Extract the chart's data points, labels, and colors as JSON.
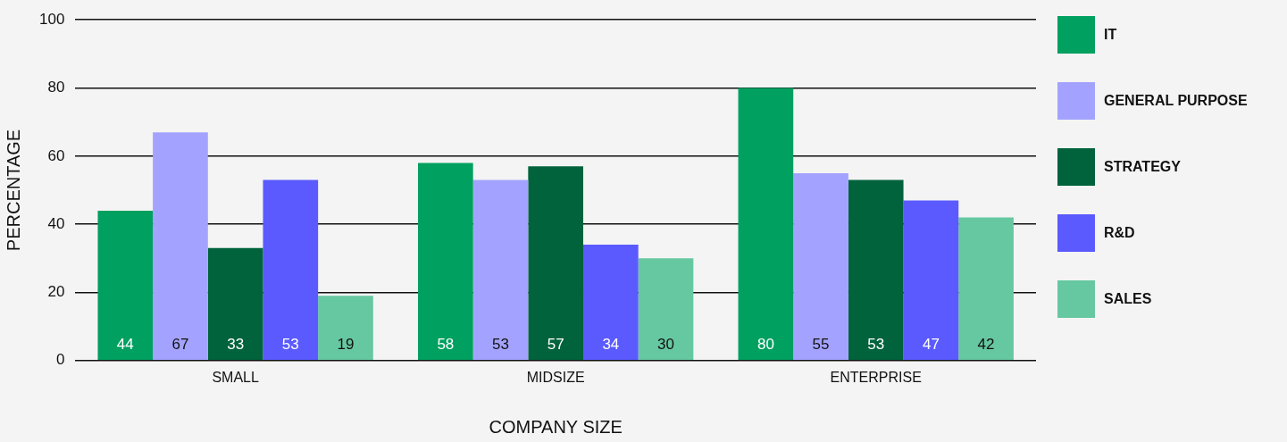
{
  "chart_data": {
    "type": "bar",
    "xlabel": "COMPANY SIZE",
    "ylabel": "PERCENTAGE",
    "categories": [
      "SMALL",
      "MIDSIZE",
      "ENTERPRISE"
    ],
    "series": [
      {
        "name": "IT",
        "color": "#00a060",
        "values": [
          44,
          58,
          80
        ]
      },
      {
        "name": "GENERAL PURPOSE",
        "color": "#a3a3ff",
        "values": [
          67,
          53,
          55
        ]
      },
      {
        "name": "STRATEGY",
        "color": "#00633c",
        "values": [
          33,
          57,
          53
        ]
      },
      {
        "name": "R&D",
        "color": "#5a5aff",
        "values": [
          53,
          34,
          47
        ]
      },
      {
        "name": "SALES",
        "color": "#66c8a0",
        "values": [
          19,
          30,
          42
        ]
      }
    ],
    "ylim": [
      0,
      100
    ],
    "yticks": [
      0,
      20,
      40,
      60,
      80,
      100
    ],
    "grid": "y",
    "legend": "right",
    "data_labels": true
  }
}
